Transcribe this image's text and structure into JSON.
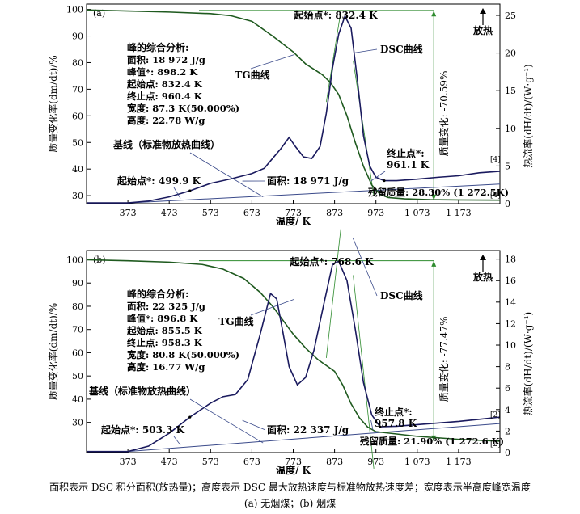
{
  "caption": {
    "note": "面积表示 DSC 积分面积(放热量)；高度表示 DSC 最大放热速度与标准物放热速度差；宽度表示半高度峰宽温度",
    "sub": "(a) 无烟煤；(b) 烟煤"
  },
  "chart_data": [
    {
      "type": "line",
      "panel_label": "(a)",
      "xlabel": "温度/ K",
      "ylabel_left": "质量变化率(dm/dt)/%",
      "ylabel_right": "热流率(dH/dt)/(W·g⁻¹)",
      "xlim": [
        273,
        1273
      ],
      "ylim_left": [
        27,
        102
      ],
      "ylim_right": [
        0,
        26.5
      ],
      "x_ticks": [
        "373",
        "473",
        "573",
        "673",
        "773",
        "873",
        "973",
        "1 073",
        "1 173"
      ],
      "x_tick_values": [
        373,
        473,
        573,
        673,
        773,
        873,
        973,
        1073,
        1173
      ],
      "left_ticks": [
        30,
        40,
        50,
        60,
        70,
        80,
        90,
        100
      ],
      "right_ticks": [
        0,
        5,
        10,
        15,
        20,
        25
      ],
      "exo_label": "放热",
      "series": [
        {
          "name": "TG曲线",
          "axis": "left",
          "color": "#1f5a1f",
          "points": [
            [
              273,
              99.8
            ],
            [
              373,
              99.4
            ],
            [
              473,
              99.0
            ],
            [
              573,
              98.4
            ],
            [
              623,
              97.6
            ],
            [
              673,
              95.5
            ],
            [
              723,
              90.0
            ],
            [
              773,
              84.0
            ],
            [
              803,
              79.5
            ],
            [
              823,
              77.5
            ],
            [
              843,
              75.5
            ],
            [
              863,
              72.5
            ],
            [
              883,
              68.0
            ],
            [
              903,
              60.0
            ],
            [
              923,
              50.0
            ],
            [
              943,
              41.0
            ],
            [
              963,
              34.0
            ],
            [
              983,
              30.5
            ],
            [
              1003,
              29.3
            ],
            [
              1043,
              28.8
            ],
            [
              1103,
              28.5
            ],
            [
              1173,
              28.4
            ],
            [
              1273,
              28.3
            ]
          ]
        },
        {
          "name": "DSC曲线",
          "axis": "right",
          "color": "#1a1a5e",
          "points": [
            [
              273,
              0.1
            ],
            [
              373,
              0.1
            ],
            [
              423,
              0.35
            ],
            [
              473,
              0.9
            ],
            [
              523,
              1.7
            ],
            [
              573,
              2.7
            ],
            [
              623,
              3.3
            ],
            [
              673,
              4.0
            ],
            [
              703,
              4.7
            ],
            [
              723,
              6.0
            ],
            [
              743,
              7.3
            ],
            [
              763,
              8.8
            ],
            [
              778,
              7.6
            ],
            [
              798,
              6.2
            ],
            [
              818,
              6.0
            ],
            [
              838,
              7.6
            ],
            [
              853,
              12.0
            ],
            [
              868,
              18.0
            ],
            [
              883,
              22.5
            ],
            [
              898,
              24.9
            ],
            [
              913,
              23.3
            ],
            [
              928,
              16.5
            ],
            [
              943,
              9.0
            ],
            [
              958,
              5.0
            ],
            [
              973,
              3.5
            ],
            [
              993,
              3.05
            ],
            [
              1023,
              3.05
            ],
            [
              1073,
              3.25
            ],
            [
              1123,
              3.5
            ],
            [
              1173,
              3.7
            ],
            [
              1223,
              4.1
            ],
            [
              1273,
              4.3
            ]
          ]
        },
        {
          "name": "基线（标准物放热曲线）",
          "axis": "right",
          "color": "#3a4a8a",
          "points": [
            [
              373,
              0.1
            ],
            [
              1273,
              2.6
            ]
          ]
        }
      ],
      "peak_analysis": {
        "title": "峰的综合分析:",
        "lines": [
          "面积: 18 972 J/g",
          "峰值*: 898.2 K",
          "起始点: 832.4 K",
          "终止点: 960.4 K",
          "宽度: 87.3 K(50.000%)",
          "高度: 22.78 W/g"
        ]
      },
      "annotations": {
        "onset_top": "起始点*: 832.4 K",
        "dsc_label": "DSC曲线",
        "tg_label": "TG曲线",
        "baseline_label": "基线（标准物放热曲线）",
        "onset_low": "起始点*: 499.9 K",
        "area_label": "面积: 18 971 J/g",
        "end_point": "终止点*:",
        "end_value": "961.1 K",
        "residual": "残留质量: 28.30% (1 272.5K)",
        "ref_a": "[4]",
        "ref_b": "[4]",
        "mass_change": "质量变化: -70.59%"
      }
    },
    {
      "type": "line",
      "panel_label": "(b)",
      "xlabel": "温度/ K",
      "ylabel_left": "质量变化率(dm/dt)/%",
      "ylabel_right": "热流率(dH/dt)/(W·g⁻¹)",
      "xlim": [
        273,
        1273
      ],
      "ylim_left": [
        17,
        104
      ],
      "ylim_right": [
        0,
        18.8
      ],
      "x_ticks": [
        "373",
        "473",
        "573",
        "673",
        "773",
        "873",
        "973",
        "1 073",
        "1 173"
      ],
      "x_tick_values": [
        373,
        473,
        573,
        673,
        773,
        873,
        973,
        1073,
        1173
      ],
      "left_ticks": [
        30,
        40,
        50,
        60,
        70,
        80,
        90,
        100
      ],
      "right_ticks": [
        0,
        2,
        4,
        6,
        8,
        10,
        12,
        14,
        16,
        18
      ],
      "exo_label": "放热",
      "series": [
        {
          "name": "TG曲线",
          "axis": "left",
          "color": "#1f5a1f",
          "points": [
            [
              273,
              100.0
            ],
            [
              373,
              99.6
            ],
            [
              473,
              99.0
            ],
            [
              553,
              98.0
            ],
            [
              603,
              96.0
            ],
            [
              653,
              92.0
            ],
            [
              693,
              86.0
            ],
            [
              723,
              80.0
            ],
            [
              748,
              74.0
            ],
            [
              773,
              68.0
            ],
            [
              803,
              62.0
            ],
            [
              833,
              57.0
            ],
            [
              853,
              54.5
            ],
            [
              873,
              52.0
            ],
            [
              893,
              46.0
            ],
            [
              913,
              38.0
            ],
            [
              933,
              32.0
            ],
            [
              953,
              28.0
            ],
            [
              973,
              26.0
            ],
            [
              1023,
              25.0
            ],
            [
              1073,
              24.0
            ],
            [
              1173,
              22.7
            ],
            [
              1273,
              21.9
            ]
          ]
        },
        {
          "name": "DSC曲线",
          "axis": "right",
          "color": "#1a1a5e",
          "points": [
            [
              273,
              0.1
            ],
            [
              373,
              0.1
            ],
            [
              423,
              0.6
            ],
            [
              473,
              1.8
            ],
            [
              523,
              3.3
            ],
            [
              573,
              4.6
            ],
            [
              603,
              5.2
            ],
            [
              633,
              5.4
            ],
            [
              663,
              6.8
            ],
            [
              693,
              11.0
            ],
            [
              718,
              14.8
            ],
            [
              733,
              14.3
            ],
            [
              748,
              11.2
            ],
            [
              763,
              8.0
            ],
            [
              783,
              6.3
            ],
            [
              803,
              7.0
            ],
            [
              823,
              9.5
            ],
            [
              848,
              14.0
            ],
            [
              868,
              17.5
            ],
            [
              883,
              17.8
            ],
            [
              903,
              16.0
            ],
            [
              923,
              11.5
            ],
            [
              943,
              6.5
            ],
            [
              963,
              3.5
            ],
            [
              983,
              2.4
            ],
            [
              1023,
              2.45
            ],
            [
              1073,
              2.6
            ],
            [
              1123,
              2.75
            ],
            [
              1173,
              2.9
            ],
            [
              1223,
              3.1
            ],
            [
              1273,
              3.3
            ]
          ]
        },
        {
          "name": "基线（标准物放热曲线）",
          "axis": "right",
          "color": "#3a4a8a",
          "points": [
            [
              373,
              0.1
            ],
            [
              1273,
              2.7
            ]
          ]
        }
      ],
      "peak_analysis": {
        "title": "峰的综合分析:",
        "lines": [
          "面积: 22 325 J/g",
          "峰值*: 896.8 K",
          "起始点: 855.5 K",
          "终止点: 958.3 K",
          "宽度: 80.8 K(50.000%)",
          "高度: 16.77 W/g"
        ]
      },
      "annotations": {
        "onset_top": "起始点*: 768.6 K",
        "dsc_label": "DSC曲线",
        "tg_label": "TG曲线",
        "baseline_label": "基线（标准物放热曲线）",
        "onset_low": "起始点*: 503.3 K",
        "area_label": "面积: 22 337 J/g",
        "end_point": "终止点*:",
        "end_value": "957.8 K",
        "residual": "残留质量: 21.90% (1 272.6 K)",
        "ref_a": "[2]",
        "ref_b": "[2]",
        "mass_change": "质量变化: -77.47%"
      }
    }
  ]
}
